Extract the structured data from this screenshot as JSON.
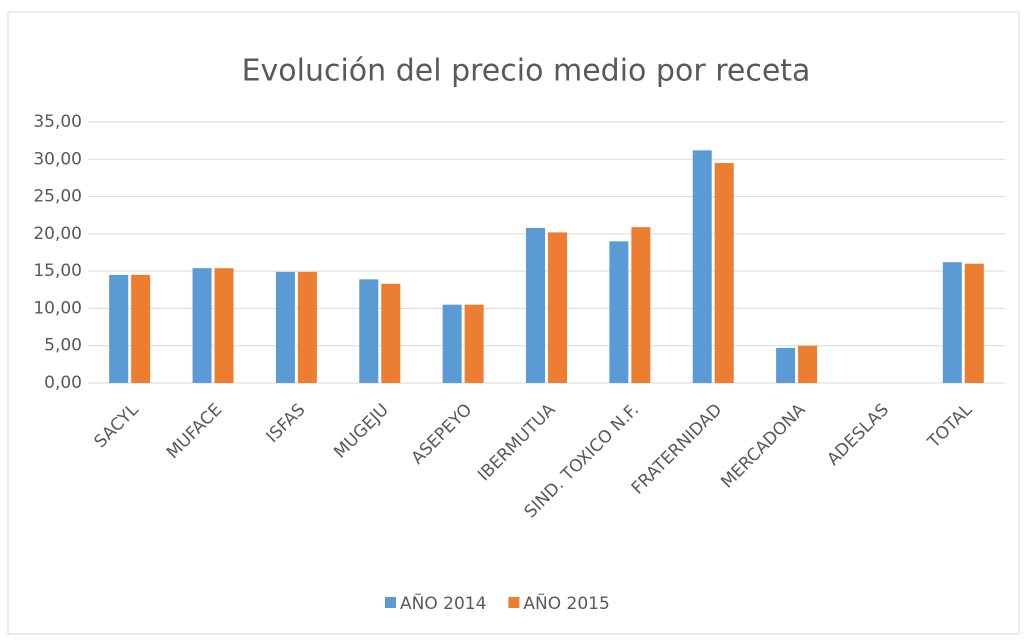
{
  "chart_data": {
    "type": "bar",
    "title": "Evolución del precio medio por receta",
    "categories": [
      "SACYL",
      "MUFACE",
      "ISFAS",
      "MUGEJU",
      "ASEPEYO",
      "IBERMUTUA",
      "SIND. TOXICO N.F.",
      "FRATERNIDAD",
      "MERCADONA",
      "ADESLAS",
      "TOTAL"
    ],
    "series": [
      {
        "name": "AÑO 2014",
        "color": "#5b9bd5",
        "values": [
          14.5,
          15.4,
          14.9,
          13.9,
          10.5,
          20.8,
          19.0,
          31.2,
          4.7,
          0,
          16.2
        ]
      },
      {
        "name": "AÑO 2015",
        "color": "#ed7d31",
        "values": [
          14.5,
          15.4,
          14.9,
          13.3,
          10.5,
          20.2,
          20.9,
          29.5,
          5.0,
          0,
          16.0
        ]
      }
    ],
    "ylim": [
      0,
      35
    ],
    "yticks": [
      {
        "value": 0,
        "label": "0,00"
      },
      {
        "value": 5,
        "label": "5,00"
      },
      {
        "value": 10,
        "label": "10,00"
      },
      {
        "value": 15,
        "label": "15,00"
      },
      {
        "value": 20,
        "label": "20,00"
      },
      {
        "value": 25,
        "label": "25,00"
      },
      {
        "value": 30,
        "label": "30,00"
      },
      {
        "value": 35,
        "label": "35,00"
      }
    ],
    "grid": true,
    "legend": "bottom"
  }
}
